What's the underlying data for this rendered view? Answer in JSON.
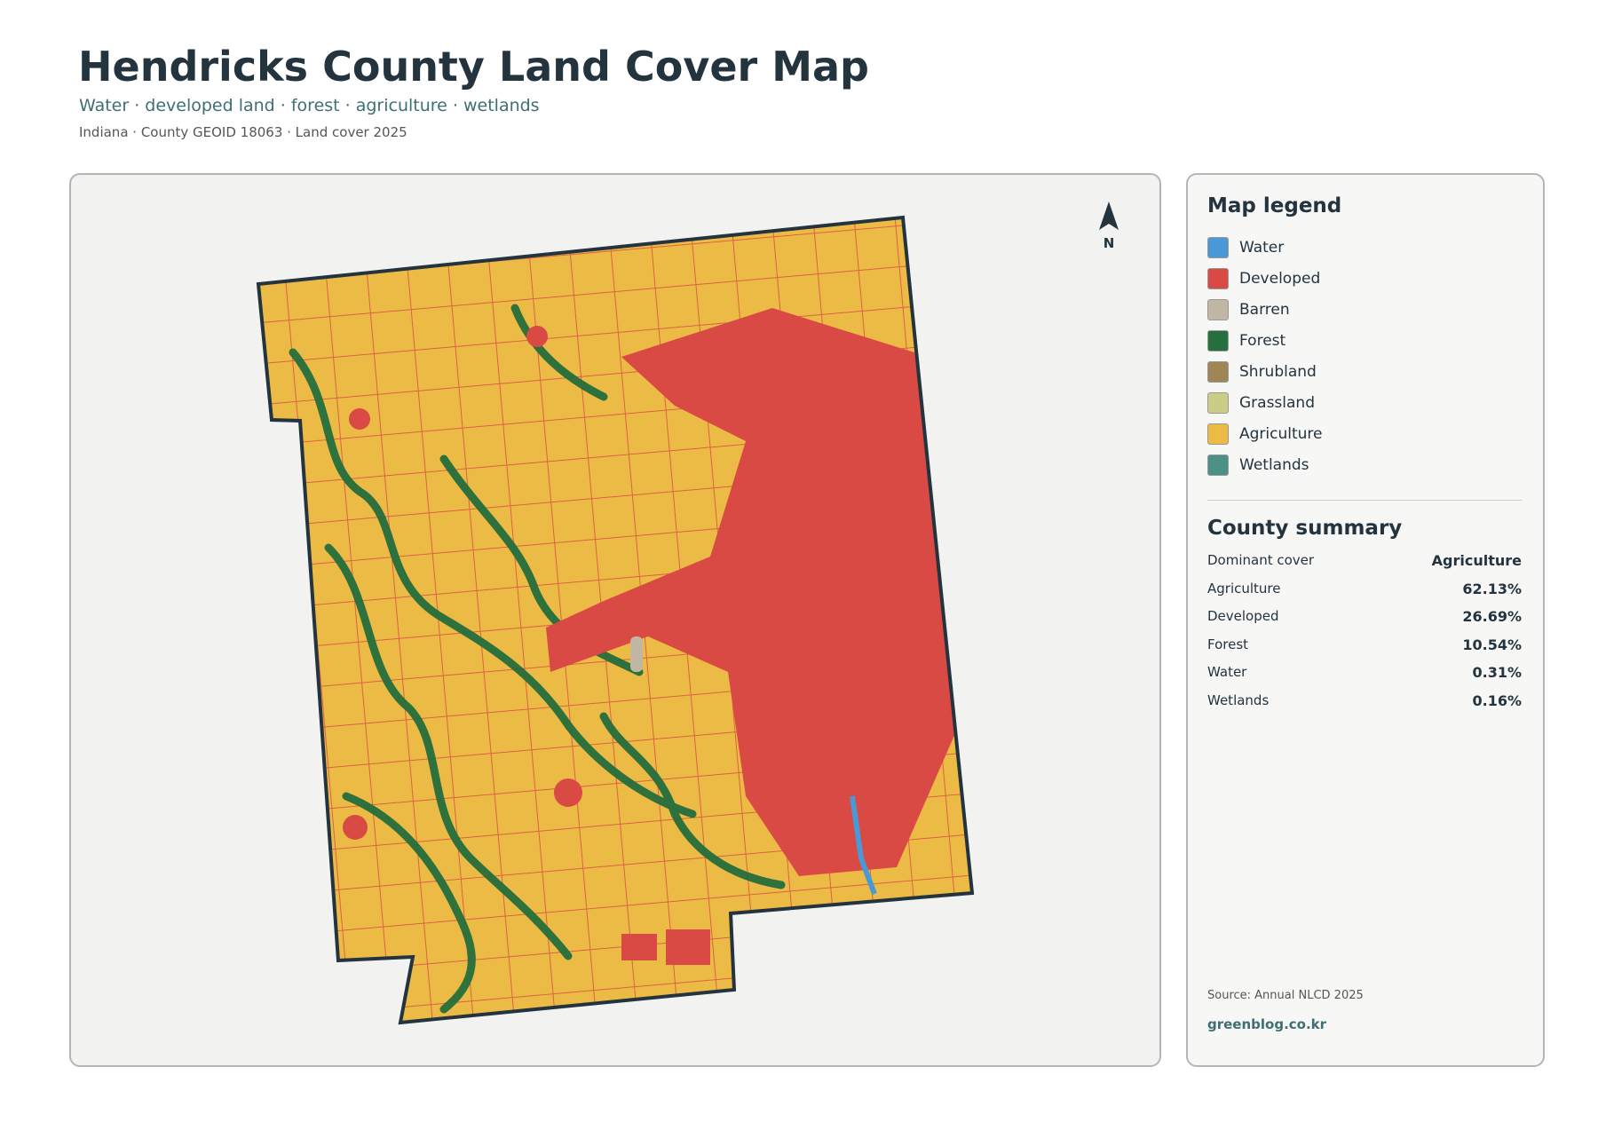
{
  "header": {
    "title": "Hendricks County Land Cover Map",
    "subtitle": "Water · developed land · forest · agriculture · wetlands",
    "meta": "Indiana · County GEOID 18063 · Land cover 2025"
  },
  "map": {
    "north_label": "N"
  },
  "legend": {
    "title": "Map legend",
    "items": [
      {
        "label": "Water",
        "color": "#4a98d6"
      },
      {
        "label": "Developed",
        "color": "#d94a45"
      },
      {
        "label": "Barren",
        "color": "#bfb6a4"
      },
      {
        "label": "Forest",
        "color": "#256e3d"
      },
      {
        "label": "Shrubland",
        "color": "#9e8655"
      },
      {
        "label": "Grassland",
        "color": "#cbcd86"
      },
      {
        "label": "Agriculture",
        "color": "#ecbb45"
      },
      {
        "label": "Wetlands",
        "color": "#4d9086"
      }
    ]
  },
  "summary": {
    "title": "County summary",
    "rows": [
      {
        "label": "Dominant cover",
        "value": "Agriculture"
      },
      {
        "label": "Agriculture",
        "value": "62.13%"
      },
      {
        "label": "Developed",
        "value": "26.69%"
      },
      {
        "label": "Forest",
        "value": "10.54%"
      },
      {
        "label": "Water",
        "value": "0.31%"
      },
      {
        "label": "Wetlands",
        "value": "0.16%"
      }
    ]
  },
  "footer": {
    "source": "Source: Annual NLCD 2025",
    "site": "greenblog.co.kr"
  }
}
